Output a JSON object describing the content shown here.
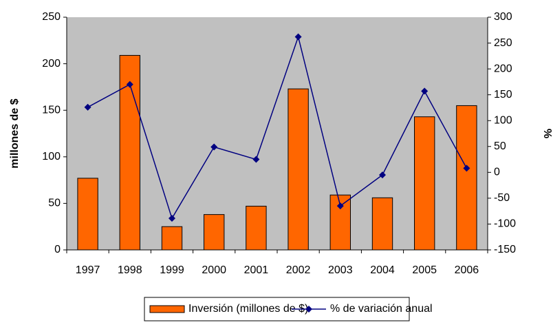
{
  "chart_data": {
    "type": "bar_line",
    "ylabel": "millones de $",
    "y2label": "%",
    "categories": [
      "1997",
      "1998",
      "1999",
      "2000",
      "2001",
      "2002",
      "2003",
      "2004",
      "2005",
      "2006"
    ],
    "series": [
      {
        "name": "Inversión (millones de $)",
        "type": "bar",
        "color": "#ff6600",
        "values": [
          77,
          209,
          25,
          38,
          47,
          173,
          59,
          56,
          143,
          155
        ]
      },
      {
        "name": "% de variación anual",
        "type": "line",
        "axis": "y2",
        "color": "#000080",
        "values": [
          126,
          170,
          -89,
          49,
          25,
          262,
          -65,
          -5,
          157,
          8
        ]
      }
    ],
    "ylim": [
      0,
      250
    ],
    "yticks": [
      0,
      50,
      100,
      150,
      200,
      250
    ],
    "y2lim": [
      -150,
      300
    ],
    "y2ticks": [
      -150,
      -100,
      -50,
      0,
      50,
      100,
      150,
      200,
      250,
      300
    ],
    "plot_background": "#c0c0c0",
    "legend": "bottom"
  }
}
